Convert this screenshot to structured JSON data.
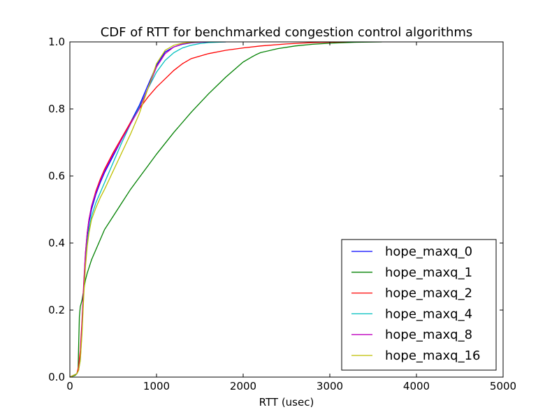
{
  "chart_data": {
    "type": "line",
    "title": "CDF of RTT for benchmarked congestion control algorithms",
    "xlabel": "RTT (usec)",
    "ylabel": "",
    "xlim": [
      0,
      5000
    ],
    "ylim": [
      0.0,
      1.0
    ],
    "xticks": [
      "0",
      "1000",
      "2000",
      "3000",
      "4000",
      "5000"
    ],
    "yticks": [
      "0.0",
      "0.2",
      "0.4",
      "0.6",
      "0.8",
      "1.0"
    ],
    "grid": false,
    "legend_position": "lower-right",
    "series": [
      {
        "name": "hope_maxq_0",
        "color": "#0000ff",
        "x": [
          0,
          40,
          80,
          100,
          120,
          140,
          160,
          180,
          200,
          220,
          250,
          300,
          350,
          400,
          500,
          600,
          700,
          800,
          900,
          1000,
          1100,
          1200,
          1300,
          1400,
          1500,
          1600,
          1800
        ],
        "y": [
          0.0,
          0.005,
          0.01,
          0.02,
          0.06,
          0.15,
          0.26,
          0.36,
          0.42,
          0.46,
          0.5,
          0.545,
          0.58,
          0.61,
          0.66,
          0.71,
          0.76,
          0.81,
          0.87,
          0.93,
          0.97,
          0.985,
          0.993,
          0.997,
          0.999,
          1.0,
          1.0
        ]
      },
      {
        "name": "hope_maxq_1",
        "color": "#008000",
        "x": [
          0,
          60,
          80,
          95,
          100,
          110,
          120,
          140,
          160,
          180,
          200,
          250,
          300,
          350,
          400,
          500,
          600,
          700,
          800,
          900,
          1000,
          1200,
          1400,
          1600,
          1800,
          2000,
          2100,
          2150,
          2200,
          2400,
          2600,
          2800,
          3000,
          3300,
          3600
        ],
        "y": [
          0.0,
          0.005,
          0.01,
          0.02,
          0.08,
          0.18,
          0.21,
          0.23,
          0.26,
          0.29,
          0.31,
          0.35,
          0.38,
          0.41,
          0.44,
          0.48,
          0.52,
          0.56,
          0.595,
          0.63,
          0.665,
          0.73,
          0.79,
          0.845,
          0.895,
          0.94,
          0.955,
          0.962,
          0.968,
          0.98,
          0.988,
          0.993,
          0.996,
          0.999,
          1.0
        ]
      },
      {
        "name": "hope_maxq_2",
        "color": "#ff0000",
        "x": [
          0,
          40,
          80,
          100,
          120,
          140,
          160,
          180,
          200,
          220,
          250,
          300,
          350,
          400,
          500,
          600,
          700,
          800,
          900,
          1000,
          1100,
          1200,
          1300,
          1400,
          1600,
          1800,
          2000,
          2200,
          2500,
          2800,
          3200
        ],
        "y": [
          0.0,
          0.005,
          0.01,
          0.03,
          0.08,
          0.17,
          0.28,
          0.37,
          0.43,
          0.47,
          0.51,
          0.555,
          0.59,
          0.62,
          0.67,
          0.715,
          0.76,
          0.8,
          0.835,
          0.865,
          0.89,
          0.915,
          0.935,
          0.95,
          0.965,
          0.975,
          0.982,
          0.988,
          0.994,
          0.998,
          1.0
        ]
      },
      {
        "name": "hope_maxq_4",
        "color": "#00bfbf",
        "x": [
          0,
          40,
          80,
          100,
          120,
          140,
          160,
          180,
          200,
          220,
          250,
          300,
          350,
          400,
          500,
          600,
          700,
          800,
          900,
          1000,
          1100,
          1200,
          1300,
          1400,
          1500,
          1600,
          1700,
          1800
        ],
        "y": [
          0.0,
          0.005,
          0.01,
          0.02,
          0.05,
          0.14,
          0.25,
          0.34,
          0.4,
          0.44,
          0.48,
          0.52,
          0.55,
          0.58,
          0.64,
          0.7,
          0.755,
          0.805,
          0.86,
          0.91,
          0.945,
          0.968,
          0.982,
          0.99,
          0.995,
          0.998,
          0.999,
          1.0
        ]
      },
      {
        "name": "hope_maxq_8",
        "color": "#bf00bf",
        "x": [
          0,
          40,
          80,
          100,
          120,
          140,
          160,
          180,
          200,
          220,
          250,
          300,
          350,
          400,
          500,
          600,
          700,
          800,
          900,
          1000,
          1100,
          1200,
          1300,
          1400,
          1500,
          1600
        ],
        "y": [
          0.0,
          0.005,
          0.01,
          0.02,
          0.06,
          0.16,
          0.27,
          0.37,
          0.43,
          0.47,
          0.51,
          0.55,
          0.585,
          0.615,
          0.665,
          0.71,
          0.755,
          0.8,
          0.86,
          0.925,
          0.965,
          0.985,
          0.994,
          0.998,
          0.999,
          1.0
        ]
      },
      {
        "name": "hope_maxq_16",
        "color": "#bfbf00",
        "x": [
          0,
          40,
          80,
          100,
          120,
          140,
          160,
          180,
          200,
          220,
          250,
          300,
          350,
          400,
          500,
          600,
          700,
          800,
          900,
          1000,
          1100,
          1200,
          1300,
          1400,
          1500
        ],
        "y": [
          0.0,
          0.005,
          0.01,
          0.02,
          0.05,
          0.13,
          0.24,
          0.33,
          0.39,
          0.43,
          0.47,
          0.505,
          0.535,
          0.56,
          0.615,
          0.67,
          0.725,
          0.785,
          0.86,
          0.935,
          0.975,
          0.99,
          0.996,
          0.999,
          1.0
        ]
      }
    ]
  }
}
